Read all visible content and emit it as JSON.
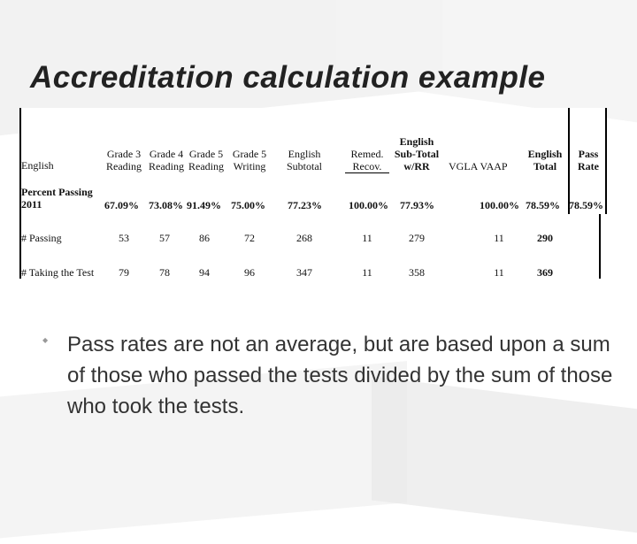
{
  "title": "Accreditation calculation example",
  "table": {
    "row_labels": {
      "subject": "English",
      "percent_passing_line1": "Percent Passing",
      "percent_passing_line2": "2011",
      "num_passing": "# Passing",
      "num_taking": "# Taking the Test"
    },
    "headers": {
      "g3_l1": "Grade 3",
      "g3_l2": "Reading",
      "g4_l1": "Grade 4",
      "g4_l2": "Reading",
      "g5r_l1": "Grade 5",
      "g5r_l2": "Reading",
      "g5w_l1": "Grade 5",
      "g5w_l2": "Writing",
      "es_l1": "English",
      "es_l2": "Subtotal",
      "rr_l1": "Remed.",
      "rr_l2": "Recov.",
      "est_l1": "English",
      "est_l2": "Sub-Total",
      "est_l3": "w/RR",
      "vgla_vaap": "VGLA   VAAP",
      "et_l1": "English",
      "et_l2": "Total",
      "pr_l1": "Pass",
      "pr_l2": "Rate"
    },
    "percent": {
      "g3": "67.09%",
      "g4": "73.08%",
      "g5r": "91.49%",
      "g5w": "75.00%",
      "es": "77.23%",
      "rr": "100.00%",
      "est": "77.93%",
      "vv": "100.00%",
      "et": "78.59%",
      "pr": "78.59%"
    },
    "passing": {
      "g3": "53",
      "g4": "57",
      "g5r": "86",
      "g5w": "72",
      "es": "268",
      "rr": "11",
      "est": "279",
      "vv": "11",
      "et": "290"
    },
    "taking": {
      "g3": "79",
      "g4": "78",
      "g5r": "94",
      "g5w": "96",
      "es": "347",
      "rr": "11",
      "est": "358",
      "vv": "11",
      "et": "369"
    }
  },
  "bullet": {
    "text": "Pass rates are not an average, but are based upon a sum of those who passed the tests divided by the sum of those who took the tests."
  }
}
